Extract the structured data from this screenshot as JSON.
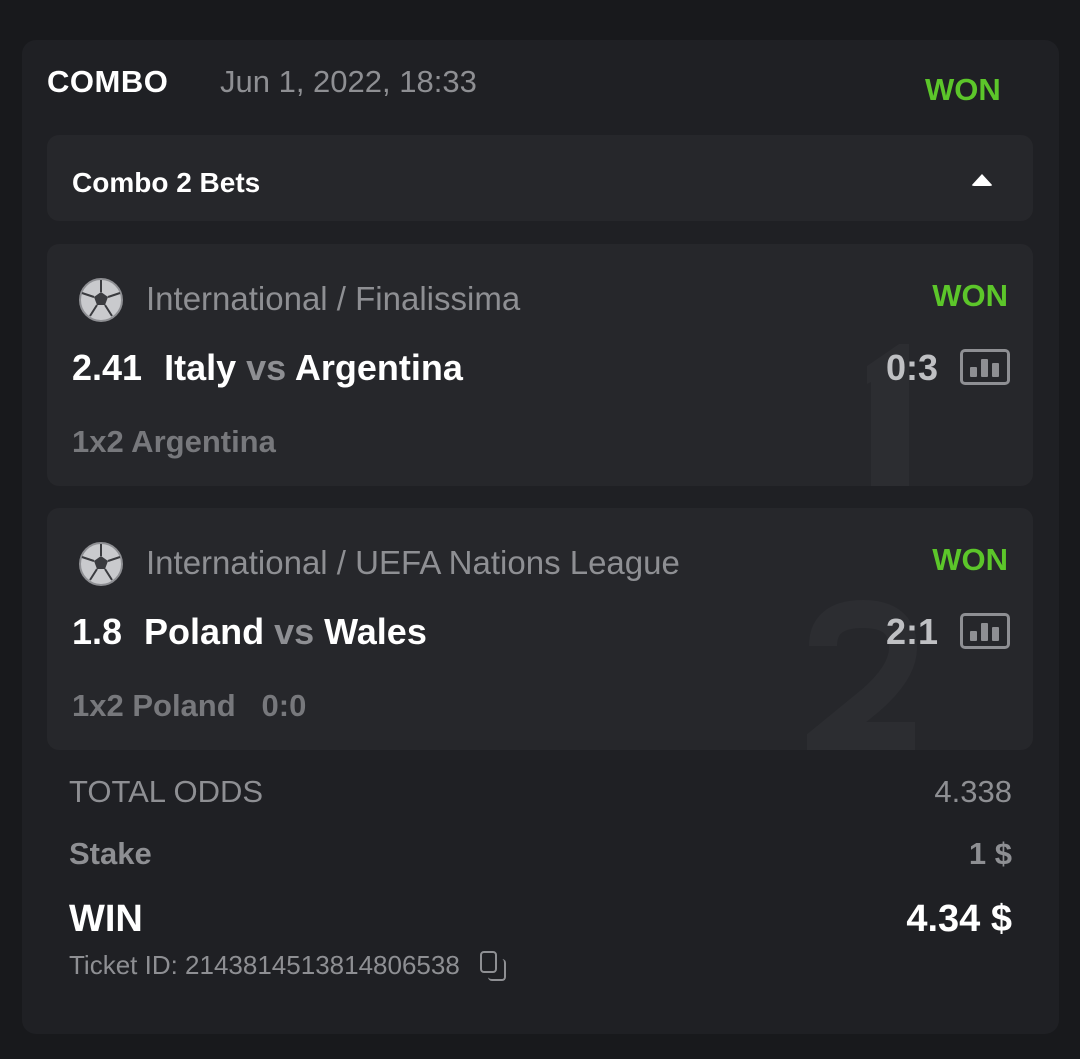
{
  "header": {
    "type": "COMBO",
    "date": "Jun 1, 2022, 18:33",
    "status": "WON"
  },
  "combo": {
    "label": "Combo 2 Bets",
    "expanded": true
  },
  "bets": [
    {
      "index": "1",
      "sport_icon": "soccer-ball-icon",
      "league": "International / Finalissima",
      "status": "WON",
      "odds": "2.41",
      "home": "Italy",
      "vs": "vs",
      "away": "Argentina",
      "score": "0:3",
      "pick": "1x2 Argentina",
      "pick_score": ""
    },
    {
      "index": "2",
      "sport_icon": "soccer-ball-icon",
      "league": "International / UEFA Nations League",
      "status": "WON",
      "odds": "1.8",
      "home": "Poland",
      "vs": "vs",
      "away": "Wales",
      "score": "2:1",
      "pick": "1x2 Poland",
      "pick_score": "0:0"
    }
  ],
  "summary": {
    "total_odds_label": "TOTAL ODDS",
    "total_odds": "4.338",
    "stake_label": "Stake",
    "stake": "1 $",
    "win_label": "WIN",
    "win": "4.34 $",
    "ticket_id": "Ticket ID: 2143814513814806538"
  },
  "colors": {
    "won": "#5cc62a",
    "card": "#1f2024",
    "panel": "#26272b",
    "muted": "#8e8f93"
  }
}
